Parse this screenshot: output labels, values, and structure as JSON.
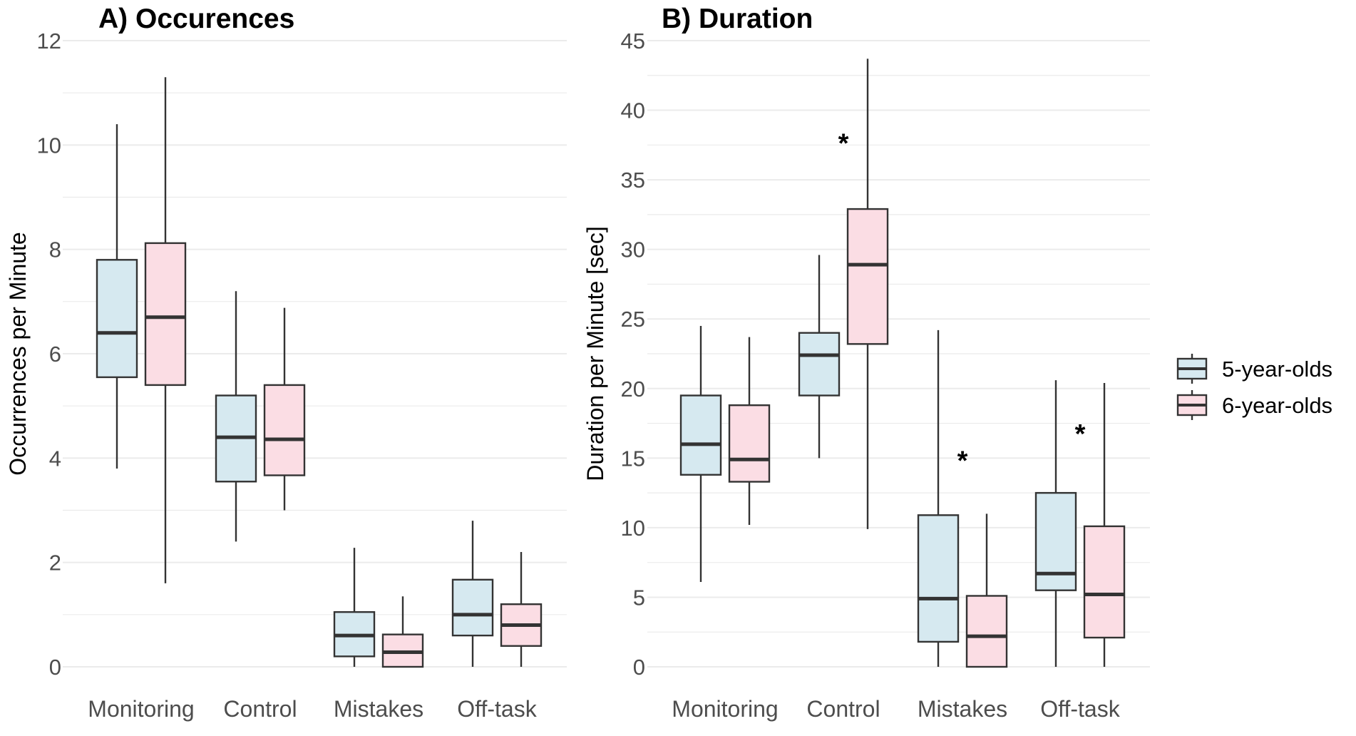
{
  "chart_data": [
    {
      "type": "boxplot",
      "title": "A) Occurences",
      "xlabel": "",
      "ylabel": "Occurrences per Minute",
      "ylim": [
        0,
        12
      ],
      "yticks": [
        0,
        2,
        4,
        6,
        8,
        10,
        12
      ],
      "grid": true,
      "categories": [
        "Monitoring",
        "Control",
        "Mistakes",
        "Off-task"
      ],
      "series": [
        {
          "name": "5-year-olds",
          "boxes": [
            {
              "min": 3.8,
              "q1": 5.55,
              "median": 6.4,
              "q3": 7.8,
              "max": 10.4
            },
            {
              "min": 2.4,
              "q1": 3.55,
              "median": 4.4,
              "q3": 5.2,
              "max": 7.2
            },
            {
              "min": 0.0,
              "q1": 0.2,
              "median": 0.6,
              "q3": 1.05,
              "max": 2.28
            },
            {
              "min": 0.0,
              "q1": 0.6,
              "median": 1.0,
              "q3": 1.67,
              "max": 2.8
            }
          ]
        },
        {
          "name": "6-year-olds",
          "boxes": [
            {
              "min": 1.6,
              "q1": 5.4,
              "median": 6.7,
              "q3": 8.12,
              "max": 11.3
            },
            {
              "min": 3.0,
              "q1": 3.67,
              "median": 4.36,
              "q3": 5.4,
              "max": 6.88
            },
            {
              "min": 0.0,
              "q1": 0.0,
              "median": 0.28,
              "q3": 0.62,
              "max": 1.35
            },
            {
              "min": 0.0,
              "q1": 0.4,
              "median": 0.8,
              "q3": 1.2,
              "max": 2.2
            }
          ]
        }
      ],
      "annotations": []
    },
    {
      "type": "boxplot",
      "title": "B) Duration",
      "xlabel": "",
      "ylabel": "Duration per Minute [sec]",
      "ylim": [
        0,
        45
      ],
      "yticks": [
        0,
        5,
        10,
        15,
        20,
        25,
        30,
        35,
        40,
        45
      ],
      "grid": true,
      "categories": [
        "Monitoring",
        "Control",
        "Mistakes",
        "Off-task"
      ],
      "series": [
        {
          "name": "5-year-olds",
          "boxes": [
            {
              "min": 6.1,
              "q1": 13.8,
              "median": 16.0,
              "q3": 19.5,
              "max": 24.5
            },
            {
              "min": 15.0,
              "q1": 19.5,
              "median": 22.4,
              "q3": 24.0,
              "max": 29.6
            },
            {
              "min": 0.0,
              "q1": 1.8,
              "median": 4.9,
              "q3": 10.9,
              "max": 24.2
            },
            {
              "min": 0.0,
              "q1": 5.5,
              "median": 6.7,
              "q3": 12.5,
              "max": 20.6
            }
          ]
        },
        {
          "name": "6-year-olds",
          "boxes": [
            {
              "min": 10.2,
              "q1": 13.3,
              "median": 14.9,
              "q3": 18.8,
              "max": 23.7
            },
            {
              "min": 9.9,
              "q1": 23.2,
              "median": 28.9,
              "q3": 32.9,
              "max": 43.7
            },
            {
              "min": 0.0,
              "q1": 0.0,
              "median": 2.2,
              "q3": 5.1,
              "max": 11.0
            },
            {
              "min": 0.0,
              "q1": 2.1,
              "median": 5.2,
              "q3": 10.1,
              "max": 20.4
            }
          ]
        }
      ],
      "annotations": [
        {
          "text": "*",
          "category": "Control",
          "y": 37.7
        },
        {
          "text": "*",
          "category": "Mistakes",
          "y": 14.9
        },
        {
          "text": "*",
          "category": "Off-task",
          "y": 16.8
        }
      ]
    }
  ],
  "legend": {
    "position": "right",
    "items": [
      {
        "label": "5-year-olds",
        "fill": "#d6e9f0",
        "stroke": "#333333"
      },
      {
        "label": "6-year-olds",
        "fill": "#fbdde4",
        "stroke": "#333333"
      }
    ]
  },
  "colors": {
    "box_5": "#d6e9f0",
    "box_6": "#fbdde4",
    "line": "#333333",
    "median": "#333333",
    "grid": "#ebebeb"
  }
}
